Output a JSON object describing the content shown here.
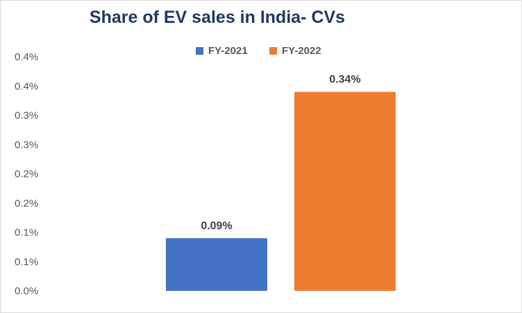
{
  "chart_data": {
    "type": "bar",
    "title": "Share of EV sales in India- CVs",
    "xlabel": "",
    "ylabel": "",
    "ylim": [
      0,
      0.45
    ],
    "yticks": [
      0.0,
      0.05,
      0.1,
      0.15,
      0.2,
      0.25,
      0.3,
      0.35,
      0.4
    ],
    "ytick_labels": [
      "0.0%",
      "0.1%",
      "0.1%",
      "0.2%",
      "0.2%",
      "0.3%",
      "0.3%",
      "0.4%",
      "0.4%"
    ],
    "grid": false,
    "legend_position": "top",
    "series": [
      {
        "name": "FY-2021",
        "values": [
          0.09
        ],
        "label": "0.09%",
        "color": "#4472c4"
      },
      {
        "name": "FY-2022",
        "values": [
          0.34
        ],
        "label": "0.34%",
        "color": "#ed7d31"
      }
    ]
  }
}
